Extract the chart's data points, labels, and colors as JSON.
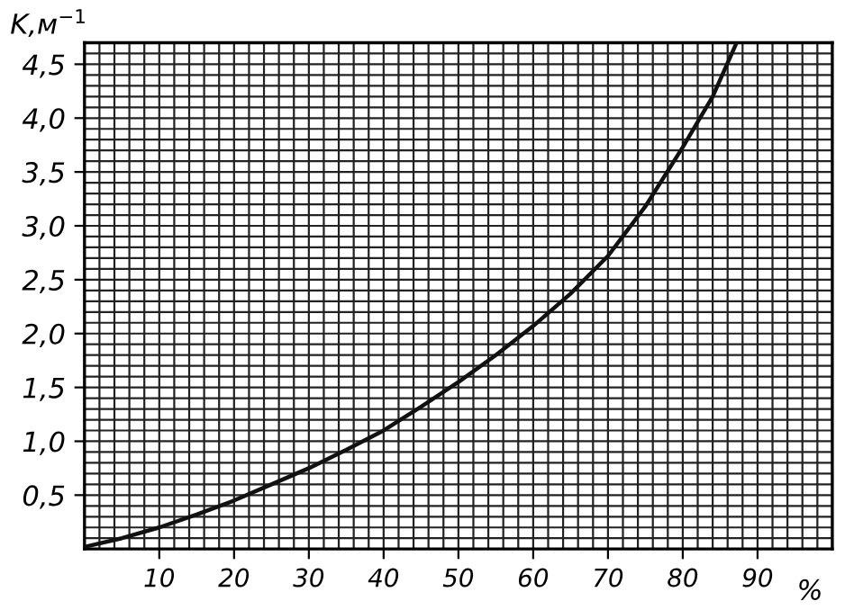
{
  "chart_data": {
    "type": "line",
    "ylabel": "K,м$^{−1}$",
    "xlabel": "%",
    "x": [
      0,
      5,
      10,
      15,
      20,
      25,
      30,
      35,
      40,
      45,
      50,
      55,
      60,
      65,
      70,
      75,
      80,
      84,
      87.2
    ],
    "series": [
      {
        "color": "#111111",
        "values": [
          0.02,
          0.1,
          0.2,
          0.32,
          0.45,
          0.6,
          0.75,
          0.92,
          1.1,
          1.32,
          1.55,
          1.8,
          2.07,
          2.37,
          2.72,
          3.18,
          3.73,
          4.2,
          4.7
        ]
      }
    ],
    "xlim": [
      0,
      100
    ],
    "ylim": [
      0,
      4.7
    ],
    "xticks": [
      10,
      20,
      30,
      40,
      50,
      60,
      70,
      80,
      90
    ],
    "yticks": [
      {
        "value": 0.5,
        "label": "0,5"
      },
      {
        "value": 1.0,
        "label": "1,0"
      },
      {
        "value": 1.5,
        "label": "1,5"
      },
      {
        "value": 2.0,
        "label": "2,0"
      },
      {
        "value": 2.5,
        "label": "2,5"
      },
      {
        "value": 3.0,
        "label": "3,0"
      },
      {
        "value": 3.5,
        "label": "3,5"
      },
      {
        "value": 4.0,
        "label": "4,0"
      },
      {
        "value": 4.5,
        "label": "4,5"
      }
    ],
    "grid": true,
    "marker": "none",
    "line_style": "solid"
  }
}
